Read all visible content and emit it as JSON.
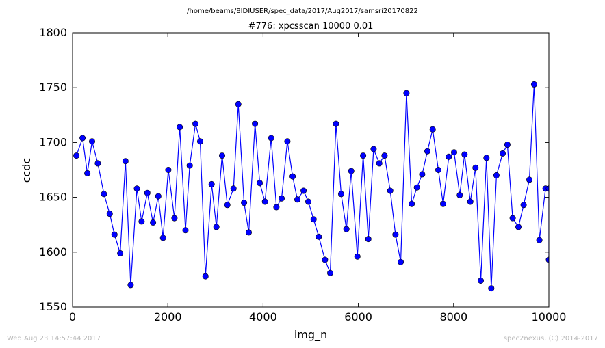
{
  "header": {
    "path": "/home/beams/8IDIUSER/spec_data/2017/Aug2017/samsri20170822"
  },
  "footer": {
    "timestamp": "Wed Aug 23 14:57:44 2017",
    "credit": "spec2nexus, (C) 2014-2017"
  },
  "chart_data": {
    "type": "line",
    "title": "#776: xpcsscan 10000 0.01",
    "xlabel": "img_n",
    "ylabel": "ccdc",
    "xlim": [
      0,
      10000
    ],
    "ylim": [
      1550,
      1800
    ],
    "xticks": [
      0,
      2000,
      4000,
      6000,
      8000,
      10000
    ],
    "yticks": [
      1550,
      1600,
      1650,
      1700,
      1750,
      1800
    ],
    "xtick_labels": [
      "0",
      "2000",
      "4000",
      "6000",
      "8000",
      "10000"
    ],
    "ytick_labels": [
      "1550",
      "1600",
      "1650",
      "1700",
      "1750",
      "1800"
    ],
    "grid": false,
    "colors": {
      "line": "#0000ff",
      "marker": "#0000ff"
    },
    "x": [
      80,
      210,
      310,
      410,
      530,
      660,
      780,
      880,
      1000,
      1110,
      1220,
      1350,
      1450,
      1570,
      1690,
      1800,
      1900,
      2010,
      2140,
      2250,
      2370,
      2460,
      2580,
      2680,
      2790,
      2920,
      3020,
      3140,
      3250,
      3380,
      3480,
      3600,
      3700,
      3830,
      3930,
      4040,
      4170,
      4280,
      4390,
      4510,
      4620,
      4720,
      4850,
      4950,
      5060,
      5170,
      5300,
      5410,
      5530,
      5640,
      5750,
      5850,
      5980,
      6100,
      6210,
      6320,
      6440,
      6550,
      6670,
      6780,
      6890,
      7010,
      7120,
      7230,
      7340,
      7450,
      7560,
      7680,
      7780,
      7900,
      8010,
      8130,
      8230,
      8350,
      8460,
      8570,
      8690,
      8790,
      8900,
      9030,
      9130,
      9240,
      9360,
      9470,
      9590,
      9690,
      9800,
      9930,
      10000,
      10000
    ],
    "values": [
      1688,
      1704,
      1672,
      1701,
      1681,
      1653,
      1635,
      1616,
      1599,
      1683,
      1570,
      1658,
      1628,
      1654,
      1627,
      1651,
      1613,
      1675,
      1631,
      1714,
      1620,
      1679,
      1717,
      1701,
      1578,
      1662,
      1623,
      1688,
      1643,
      1658,
      1735,
      1645,
      1618,
      1717,
      1663,
      1646,
      1704,
      1641,
      1649,
      1701,
      1669,
      1648,
      1656,
      1646,
      1630,
      1614,
      1593,
      1581,
      1717,
      1653,
      1621,
      1674,
      1596,
      1688,
      1612,
      1694,
      1681,
      1688,
      1656,
      1616,
      1591,
      1745,
      1644,
      1659,
      1671,
      1692,
      1712,
      1675,
      1644,
      1687,
      1691,
      1652,
      1689,
      1646,
      1677,
      1574,
      1686,
      1567,
      1670,
      1690,
      1698,
      1631,
      1623,
      1643,
      1666,
      1753,
      1611,
      1658,
      1658,
      1593
    ]
  }
}
